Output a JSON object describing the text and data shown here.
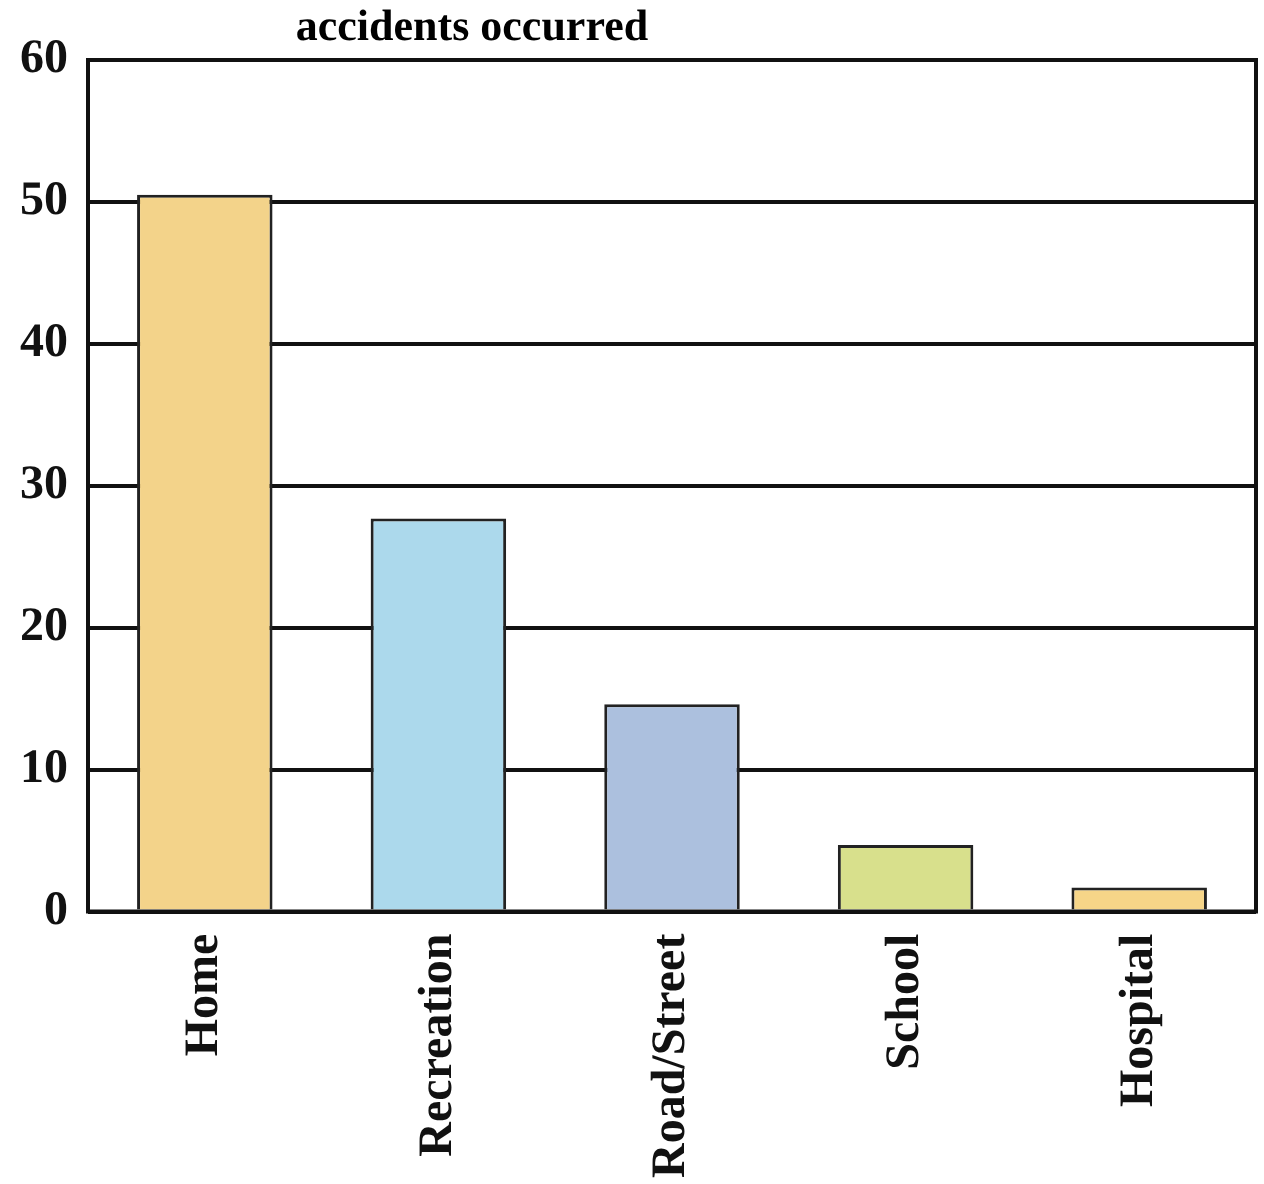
{
  "chart_data": {
    "type": "bar",
    "title": "accidents occurred",
    "categories": [
      "Home",
      "Recreation",
      "Road/Street",
      "School",
      "Hospital"
    ],
    "values": [
      50.5,
      27.7,
      14.6,
      4.7,
      1.7
    ],
    "colors": [
      "#f3d38a",
      "#acd9ec",
      "#acc0de",
      "#d8e08c",
      "#f6d588"
    ],
    "ylim": [
      0,
      60
    ],
    "yticks": [
      0,
      10,
      20,
      30,
      40,
      50,
      60
    ],
    "grid": "y",
    "legend": false
  }
}
